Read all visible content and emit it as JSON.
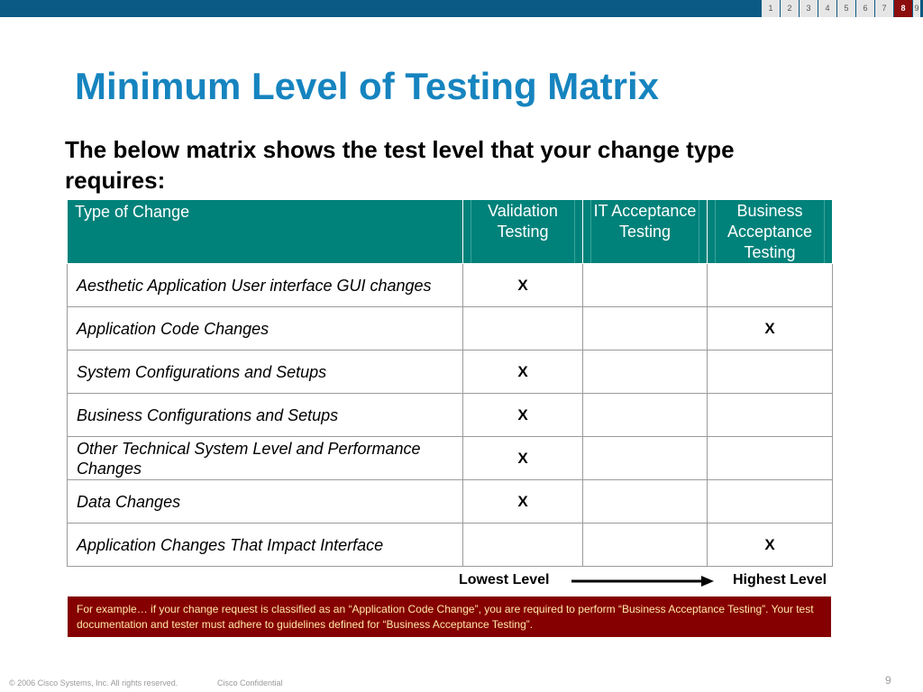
{
  "nav": {
    "pages": [
      "1",
      "2",
      "3",
      "4",
      "5",
      "6",
      "7",
      "8",
      "9"
    ],
    "active_page": "8"
  },
  "slide": {
    "title": "Minimum Level of Testing Matrix",
    "intro": "The below matrix shows the test level that your change type requires:"
  },
  "matrix": {
    "headers": [
      "Type of Change",
      "Validation Testing",
      "IT Acceptance Testing",
      "Business Acceptance Testing"
    ],
    "rows": [
      {
        "label": "Aesthetic Application User interface GUI changes",
        "cells": [
          "X",
          "",
          ""
        ]
      },
      {
        "label": "Application Code Changes",
        "cells": [
          "",
          "",
          "X"
        ]
      },
      {
        "label": "System Configurations and Setups",
        "cells": [
          "X",
          "",
          ""
        ]
      },
      {
        "label": "Business Configurations and Setups",
        "cells": [
          "X",
          "",
          ""
        ]
      },
      {
        "label": "Other Technical System Level and Performance Changes",
        "cells": [
          "X",
          "",
          ""
        ]
      },
      {
        "label": "Data Changes",
        "cells": [
          "X",
          "",
          ""
        ]
      },
      {
        "label": "Application Changes That Impact Interface",
        "cells": [
          "",
          "",
          "X"
        ]
      }
    ]
  },
  "scale": {
    "low_label": "Lowest Level",
    "high_label": "Highest Level"
  },
  "note": "For example… if your change request is classified as an “Application Code Change”, you are required to perform “Business Acceptance Testing”.  Your test documentation and tester must adhere to guidelines defined for “Business Acceptance Testing”.",
  "footer": {
    "copyright": "© 2006 Cisco Systems, Inc. All rights reserved.",
    "confidential": "Cisco Confidential",
    "page_number": "9"
  },
  "colors": {
    "topbar": "#0b5a85",
    "title": "#1684bf",
    "table_header": "#00827a",
    "note_background": "#850000",
    "note_text": "#ffe9a8",
    "active_page": "#8b0d0d"
  }
}
